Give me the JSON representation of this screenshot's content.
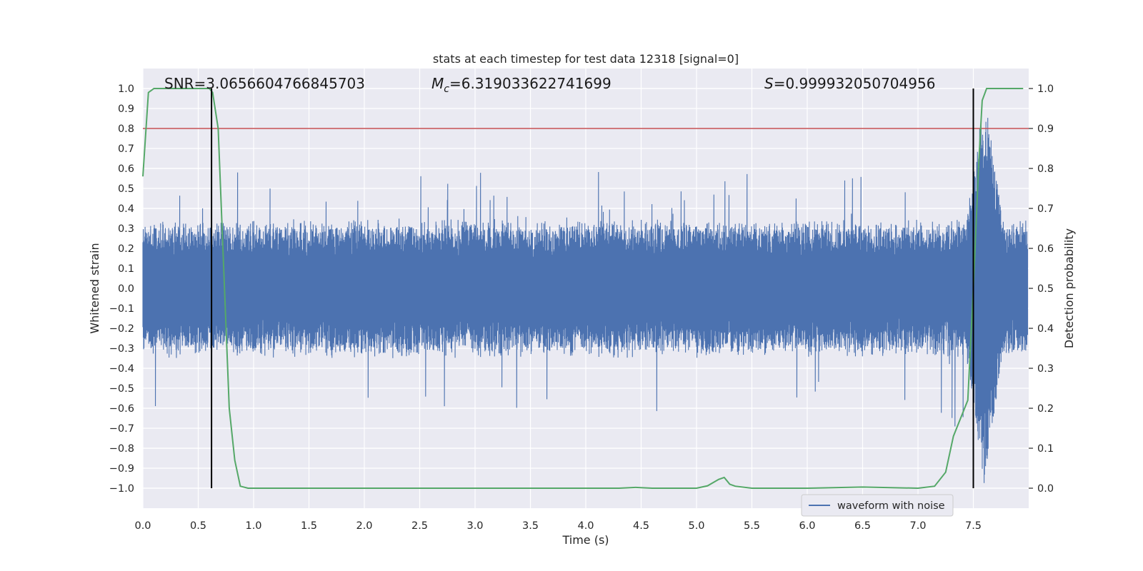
{
  "chart_data": {
    "type": "line",
    "title": "stats at each timestep for test data 12318 [signal=0]",
    "xlabel": "Time (s)",
    "ylabel": "Whitened strain",
    "y2label": "Detection probability",
    "xlim": [
      0.0,
      8.0
    ],
    "ylim": [
      -1.1,
      1.1
    ],
    "y2lim": [
      -0.05,
      1.05
    ],
    "x_ticks": [
      0.0,
      0.5,
      1.0,
      1.5,
      2.0,
      2.5,
      3.0,
      3.5,
      4.0,
      4.5,
      5.0,
      5.5,
      6.0,
      6.5,
      7.0,
      7.5
    ],
    "y_ticks": [
      -1.0,
      -0.9,
      -0.8,
      -0.7,
      -0.6,
      -0.5,
      -0.4,
      -0.3,
      -0.2,
      -0.1,
      0.0,
      0.1,
      0.2,
      0.3,
      0.4,
      0.5,
      0.6,
      0.7,
      0.8,
      0.9,
      1.0
    ],
    "y2_ticks": [
      0.0,
      0.1,
      0.2,
      0.3,
      0.4,
      0.5,
      0.6,
      0.7,
      0.8,
      0.9,
      1.0
    ],
    "grid": true,
    "legend_position": "lower-right",
    "annotations": {
      "snr": "SNR=3.0656604766845703",
      "mc_symbol": "M",
      "mc_sub": "c",
      "mc_value": "=6.319033622741699",
      "s_symbol": "S",
      "s_value": "=0.999932050704956"
    },
    "series": [
      {
        "name": "waveform with noise",
        "axis": "left",
        "color": "#4c72b0",
        "noise_envelope": {
          "typical_amplitude": 0.2,
          "peak_max": 0.61,
          "peak_min": -0.71,
          "burst_x": 7.6,
          "burst_max": 0.98,
          "burst_min": -0.99
        }
      },
      {
        "axis": "right",
        "color": "#55a868",
        "x": [
          0.0,
          0.05,
          0.1,
          0.2,
          0.3,
          0.4,
          0.5,
          0.6,
          0.63,
          0.68,
          0.73,
          0.78,
          0.83,
          0.88,
          0.95,
          1.0,
          1.5,
          2.0,
          2.5,
          3.0,
          3.5,
          4.0,
          4.3,
          4.45,
          4.6,
          5.0,
          5.1,
          5.2,
          5.25,
          5.3,
          5.35,
          5.5,
          6.0,
          6.5,
          7.0,
          7.15,
          7.25,
          7.32,
          7.45,
          7.5,
          7.55,
          7.58,
          7.62,
          7.7,
          7.8,
          7.95
        ],
        "y": [
          0.78,
          0.99,
          1.0,
          1.0,
          1.0,
          1.0,
          1.0,
          1.0,
          0.99,
          0.9,
          0.55,
          0.2,
          0.07,
          0.005,
          0.0,
          0.0,
          0.0,
          0.0,
          0.0,
          0.0,
          0.0,
          0.0,
          0.0,
          0.002,
          0.0,
          0.0,
          0.006,
          0.022,
          0.027,
          0.01,
          0.005,
          0.0,
          0.0,
          0.003,
          0.0,
          0.005,
          0.04,
          0.13,
          0.22,
          0.5,
          0.82,
          0.97,
          1.0,
          1.0,
          1.0,
          1.0
        ]
      }
    ],
    "threshold": {
      "axis": "right",
      "value": 0.9,
      "color": "#c44e52"
    },
    "vlines": [
      {
        "x": 0.62,
        "y2_from": 0.0,
        "y2_to": 1.0,
        "color": "#000000"
      },
      {
        "x": 7.5,
        "y2_from": 0.0,
        "y2_to": 1.0,
        "color": "#000000"
      }
    ]
  }
}
